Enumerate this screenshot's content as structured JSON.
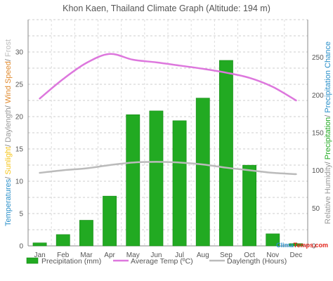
{
  "chart_data": {
    "type": "bar",
    "title": "Khon Kaen, Thailand Climate Graph (Altitude: 194 m)",
    "categories": [
      "Jan",
      "Feb",
      "Mar",
      "Apr",
      "May",
      "Jun",
      "Jul",
      "Aug",
      "Sep",
      "Oct",
      "Nov",
      "Dec"
    ],
    "series": [
      {
        "name": "Precipitation (mm)",
        "axis": "right",
        "kind": "bar",
        "color": "#22aa22",
        "values": [
          4,
          15,
          34,
          66,
          174,
          179,
          166,
          196,
          246,
          107,
          16,
          3
        ]
      },
      {
        "name": "Average Temp (ºC)",
        "axis": "left",
        "kind": "line",
        "color": "#dd77dd",
        "values": [
          22.8,
          25.8,
          28.3,
          29.7,
          28.8,
          28.4,
          27.9,
          27.4,
          26.8,
          26.0,
          24.6,
          22.5
        ]
      },
      {
        "name": "Daylength (Hours)",
        "axis": "left",
        "kind": "line",
        "color": "#bbbbbb",
        "values": [
          11.3,
          11.7,
          12.0,
          12.5,
          12.9,
          13.0,
          12.9,
          12.6,
          12.1,
          11.7,
          11.3,
          11.1
        ]
      }
    ],
    "left_axis": {
      "ticks": [
        "0",
        "5",
        "10",
        "15",
        "20",
        "25",
        "30"
      ],
      "min": 0,
      "max": 35
    },
    "right_axis": {
      "ticks": [
        "0",
        "50",
        "100",
        "150",
        "200",
        "250"
      ],
      "min": 0,
      "max": 300
    },
    "left_axis_label_parts": [
      {
        "text": "Temperatures",
        "color": "#2a8fc9"
      },
      {
        "text": "/ ",
        "color": "#777777"
      },
      {
        "text": "Sunlight",
        "color": "#f5c518"
      },
      {
        "text": "/ ",
        "color": "#777777"
      },
      {
        "text": "Daylength",
        "color": "#999999"
      },
      {
        "text": "/ ",
        "color": "#777777"
      },
      {
        "text": "Wind Speed",
        "color": "#e08a2e"
      },
      {
        "text": "/ ",
        "color": "#777777"
      },
      {
        "text": "Frost",
        "color": "#bbbbbb"
      }
    ],
    "right_axis_label_parts": [
      {
        "text": "Relative Humidity",
        "color": "#999999"
      },
      {
        "text": "/ ",
        "color": "#777777"
      },
      {
        "text": "Precipitation",
        "color": "#22aa22"
      },
      {
        "text": "/ ",
        "color": "#777777"
      },
      {
        "text": "Precipitation Chance",
        "color": "#2a8fc9"
      }
    ],
    "grid": true,
    "legend_position": "bottom"
  },
  "brand": {
    "climate_text": "Clima",
    "temps_text": "Temps.com",
    "climate_color": "#2a8fc9",
    "temps_color": "#e2231a"
  }
}
